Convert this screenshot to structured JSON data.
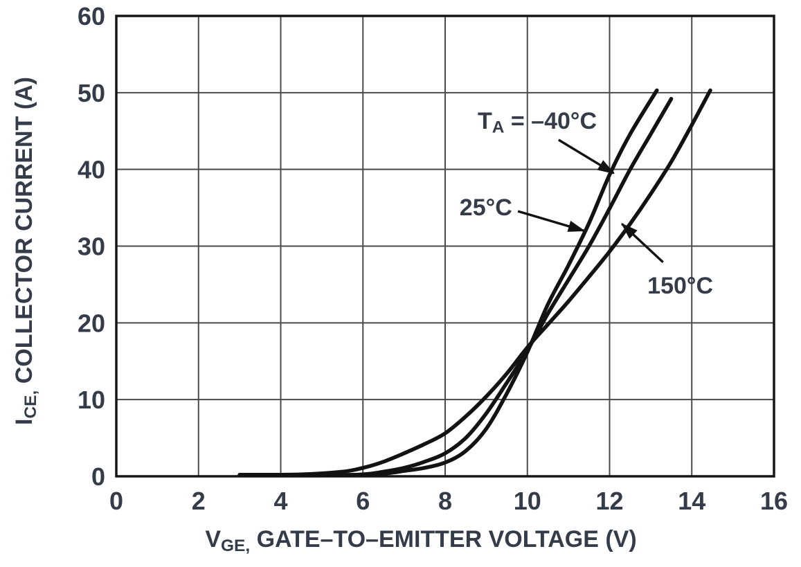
{
  "chart_data": {
    "type": "line",
    "title": "",
    "xlabel_parts": [
      {
        "text": "V"
      },
      {
        "text": "GE,",
        "sub": true
      },
      {
        "text": " GATE–TO–EMITTER VOLTAGE (V)"
      }
    ],
    "ylabel_parts": [
      {
        "text": "I"
      },
      {
        "text": "CE,",
        "sub": true
      },
      {
        "text": " COLLECTOR CURRENT (A)"
      }
    ],
    "xlim": [
      0,
      16
    ],
    "ylim": [
      0,
      60
    ],
    "xticks": [
      0,
      2,
      4,
      6,
      8,
      10,
      12,
      14,
      16
    ],
    "yticks": [
      0,
      10,
      20,
      30,
      40,
      50,
      60
    ],
    "grid": true,
    "legend_position": "annotated-on-curves",
    "series": [
      {
        "name": "-40°C",
        "points": [
          [
            3,
            0.15
          ],
          [
            5,
            0.15
          ],
          [
            6,
            0.2
          ],
          [
            6.6,
            0.4
          ],
          [
            7,
            0.7
          ],
          [
            7.5,
            1.1
          ],
          [
            8,
            1.8
          ],
          [
            8.5,
            3.3
          ],
          [
            9,
            6.2
          ],
          [
            9.5,
            10.8
          ],
          [
            10,
            16.2
          ],
          [
            10.5,
            22.4
          ],
          [
            11,
            27.5
          ],
          [
            11.5,
            33.0
          ],
          [
            12,
            39.3
          ],
          [
            12.5,
            44.6
          ],
          [
            13.15,
            50.3
          ]
        ]
      },
      {
        "name": "25°C",
        "points": [
          [
            3,
            0.15
          ],
          [
            5,
            0.15
          ],
          [
            6,
            0.25
          ],
          [
            6.5,
            0.6
          ],
          [
            7,
            1.1
          ],
          [
            7.5,
            1.9
          ],
          [
            8,
            3.0
          ],
          [
            8.5,
            5.0
          ],
          [
            9,
            8.2
          ],
          [
            9.5,
            12.2
          ],
          [
            10,
            16.4
          ],
          [
            10.5,
            21.2
          ],
          [
            11,
            25.6
          ],
          [
            11.5,
            30.0
          ],
          [
            12,
            34.9
          ],
          [
            12.5,
            40.0
          ],
          [
            13,
            44.6
          ],
          [
            13.5,
            49.2
          ]
        ]
      },
      {
        "name": "150°C",
        "points": [
          [
            3,
            0.2
          ],
          [
            4.5,
            0.25
          ],
          [
            5.5,
            0.6
          ],
          [
            6,
            1.1
          ],
          [
            6.5,
            1.9
          ],
          [
            7,
            3.0
          ],
          [
            7.5,
            4.2
          ],
          [
            8,
            5.6
          ],
          [
            8.5,
            7.8
          ],
          [
            9,
            10.4
          ],
          [
            9.5,
            13.4
          ],
          [
            10,
            16.8
          ],
          [
            10.5,
            19.8
          ],
          [
            11,
            22.8
          ],
          [
            11.5,
            26.0
          ],
          [
            12,
            29.3
          ],
          [
            12.5,
            32.9
          ],
          [
            13,
            36.8
          ],
          [
            13.5,
            41.0
          ],
          [
            14,
            45.8
          ],
          [
            14.45,
            50.3
          ]
        ]
      }
    ],
    "annotations": [
      {
        "id": "ta-minus40",
        "label_parts": [
          {
            "text": "T"
          },
          {
            "text": "A",
            "sub": true
          },
          {
            "text": " = –40°C"
          }
        ],
        "text_xy": [
          10.24,
          45.3
        ],
        "anchor": "middle",
        "arrow_from": [
          10.76,
          43.85
        ],
        "arrow_to": [
          12.1,
          39.5
        ]
      },
      {
        "id": "t25",
        "label_parts": [
          {
            "text": "25°C"
          }
        ],
        "text_xy": [
          8.99,
          34.0
        ],
        "anchor": "middle",
        "arrow_from": [
          9.77,
          34.55
        ],
        "arrow_to": [
          11.38,
          32.0
        ]
      },
      {
        "id": "t150",
        "label_parts": [
          {
            "text": "150°C"
          }
        ],
        "text_xy": [
          13.72,
          23.8
        ],
        "anchor": "middle",
        "arrow_from": [
          13.3,
          27.9
        ],
        "arrow_to": [
          12.3,
          32.9
        ]
      }
    ],
    "colors": {
      "curve": "#121212",
      "grid": "#4a4a4a",
      "frame": "#161616",
      "text": "#343b49",
      "background": "#ffffff"
    }
  }
}
